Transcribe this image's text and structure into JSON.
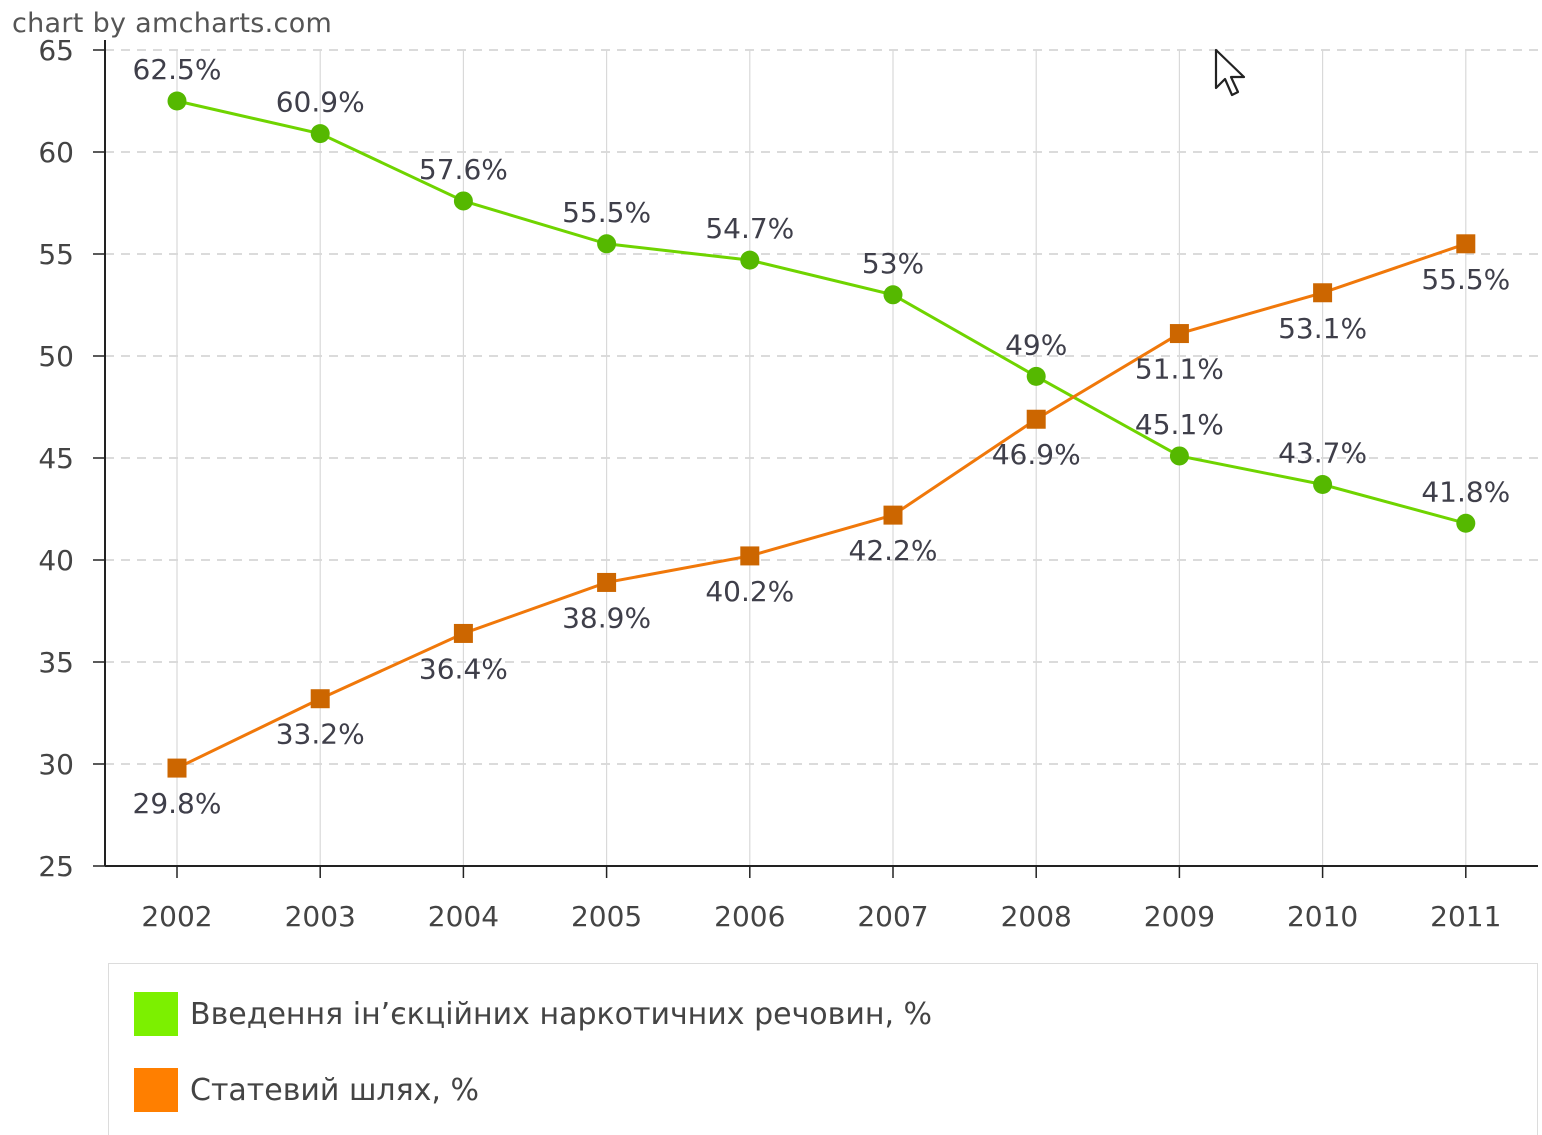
{
  "credit": "chart by amcharts.com",
  "colors": {
    "series1": "#6fd400",
    "series1_marker": "#55b800",
    "series2": "#f0780a",
    "series2_marker": "#cc6600",
    "grid": "#cfcfcf",
    "axis": "#222222"
  },
  "cursor_icon": "arrow-cursor-icon",
  "chart_data": {
    "type": "line",
    "title": "",
    "xlabel": "",
    "ylabel": "",
    "ylim": [
      25,
      65
    ],
    "y_ticks": [
      25,
      30,
      35,
      40,
      45,
      50,
      55,
      60,
      65
    ],
    "grid": true,
    "legend_position": "bottom",
    "categories": [
      "2002",
      "2003",
      "2004",
      "2005",
      "2006",
      "2007",
      "2008",
      "2009",
      "2010",
      "2011"
    ],
    "series": [
      {
        "name": "Введення ін’єкційних наркотичних речовин, %",
        "marker": "circle",
        "values": [
          62.5,
          60.9,
          57.6,
          55.5,
          54.7,
          53,
          49,
          45.1,
          43.7,
          41.8
        ],
        "labels": [
          "62.5%",
          "60.9%",
          "57.6%",
          "55.5%",
          "54.7%",
          "53%",
          "49%",
          "45.1%",
          "43.7%",
          "41.8%"
        ]
      },
      {
        "name": "Статевий шлях, %",
        "marker": "square",
        "values": [
          29.8,
          33.2,
          36.4,
          38.9,
          40.2,
          42.2,
          46.9,
          51.1,
          53.1,
          55.5
        ],
        "labels": [
          "29.8%",
          "33.2%",
          "36.4%",
          "38.9%",
          "40.2%",
          "42.2%",
          "46.9%",
          "51.1%",
          "53.1%",
          "55.5%"
        ]
      }
    ]
  }
}
